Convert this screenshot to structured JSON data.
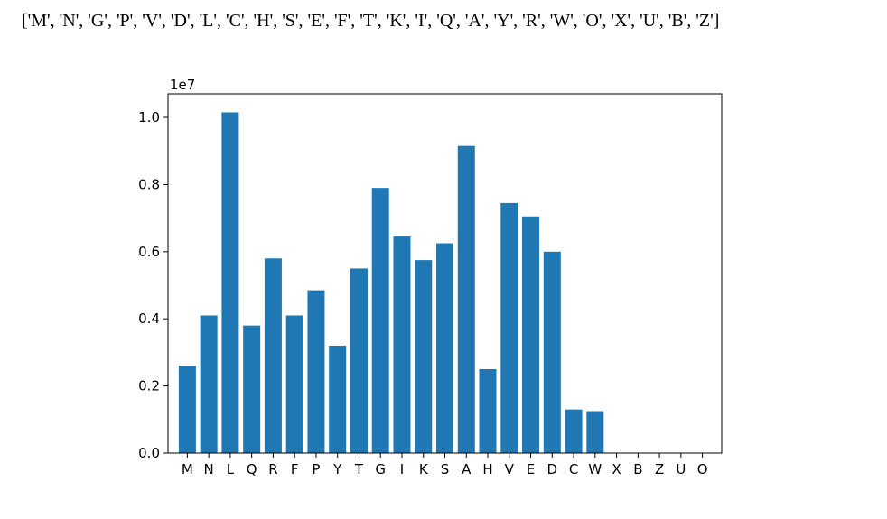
{
  "output_text": "['M', 'N', 'G', 'P', 'V', 'D', 'L', 'C', 'H', 'S', 'E', 'F', 'T', 'K', 'I', 'Q', 'A', 'Y', 'R', 'W', 'O', 'X', 'U', 'B', 'Z']",
  "colors": {
    "bar": "#1f77b4",
    "axis": "#000000",
    "background": "#ffffff"
  },
  "chart_data": {
    "type": "bar",
    "categories": [
      "M",
      "N",
      "L",
      "Q",
      "R",
      "F",
      "P",
      "Y",
      "T",
      "G",
      "I",
      "K",
      "S",
      "A",
      "H",
      "V",
      "E",
      "D",
      "C",
      "W",
      "X",
      "B",
      "Z",
      "U",
      "O"
    ],
    "values": [
      2600000,
      4100000,
      10150000,
      3800000,
      5800000,
      4100000,
      4850000,
      3200000,
      5500000,
      7900000,
      6450000,
      5750000,
      6250000,
      9150000,
      2500000,
      7450000,
      7050000,
      6000000,
      1300000,
      1250000,
      0,
      0,
      0,
      0,
      0
    ],
    "ylim": [
      0,
      10700000
    ],
    "yticks": [
      0,
      2000000,
      4000000,
      6000000,
      8000000,
      10000000
    ],
    "ytick_labels": [
      "0.0",
      "0.2",
      "0.4",
      "0.6",
      "0.8",
      "1.0"
    ],
    "y_offset_label": "1e7",
    "title": "",
    "xlabel": "",
    "ylabel": "",
    "grid": false
  }
}
